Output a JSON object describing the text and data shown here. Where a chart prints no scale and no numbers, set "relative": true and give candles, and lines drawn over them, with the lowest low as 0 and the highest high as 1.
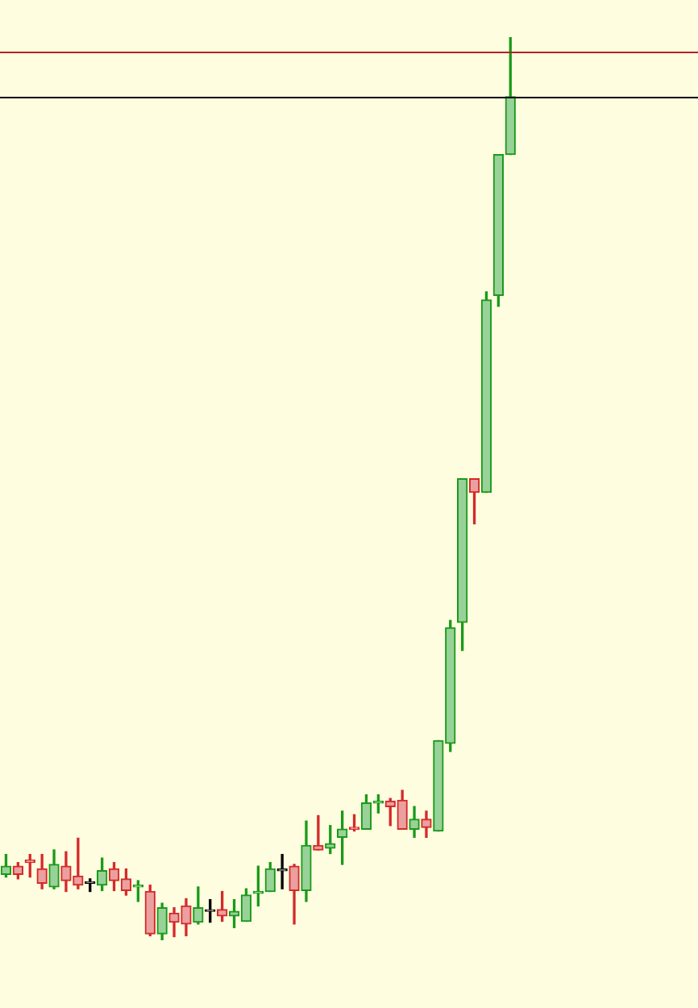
{
  "chart_data": {
    "type": "candlestick",
    "relative": true,
    "categories": [
      null,
      null,
      null,
      null,
      null,
      null,
      null,
      null,
      null,
      null,
      null,
      null,
      null,
      null,
      null,
      null,
      null,
      null,
      null,
      null,
      null,
      null,
      null,
      null,
      null,
      null,
      null,
      null,
      null,
      null,
      null,
      null,
      null,
      null,
      null,
      null,
      null,
      null,
      null,
      null,
      null,
      null,
      null
    ],
    "ohlc": [
      [
        0.073,
        0.095,
        0.07,
        0.082
      ],
      [
        0.082,
        0.086,
        0.068,
        0.073
      ],
      [
        0.089,
        0.095,
        0.07,
        0.086
      ],
      [
        0.079,
        0.095,
        0.057,
        0.063
      ],
      [
        0.059,
        0.1,
        0.057,
        0.084
      ],
      [
        0.082,
        0.098,
        0.054,
        0.066
      ],
      [
        0.071,
        0.113,
        0.057,
        0.061
      ],
      [
        0.063,
        0.068,
        0.054,
        0.063
      ],
      [
        0.061,
        0.091,
        0.055,
        0.077
      ],
      [
        0.079,
        0.086,
        0.055,
        0.066
      ],
      [
        0.068,
        0.079,
        0.05,
        0.055
      ],
      [
        0.059,
        0.066,
        0.043,
        0.061
      ],
      [
        0.054,
        0.061,
        0.005,
        0.007
      ],
      [
        0.007,
        0.041,
        0,
        0.036
      ],
      [
        0.03,
        0.036,
        0.004,
        0.02
      ],
      [
        0.038,
        0.046,
        0.005,
        0.018
      ],
      [
        0.02,
        0.059,
        0.018,
        0.036
      ],
      [
        0.032,
        0.045,
        0.02,
        0.032
      ],
      [
        0.034,
        0.054,
        0.021,
        0.027
      ],
      [
        0.027,
        0.045,
        0.014,
        0.032
      ],
      [
        0.021,
        0.057,
        0.021,
        0.05
      ],
      [
        0.052,
        0.082,
        0.038,
        0.054
      ],
      [
        0.054,
        0.086,
        0.054,
        0.079
      ],
      [
        0.077,
        0.095,
        0.057,
        0.077
      ],
      [
        0.082,
        0.084,
        0.018,
        0.055
      ],
      [
        0.055,
        0.132,
        0.043,
        0.105
      ],
      [
        0.105,
        0.138,
        0.1,
        0.1
      ],
      [
        0.102,
        0.127,
        0.096,
        0.107
      ],
      [
        0.114,
        0.143,
        0.084,
        0.123
      ],
      [
        0.125,
        0.139,
        0.121,
        0.123
      ],
      [
        0.123,
        0.161,
        0.123,
        0.152
      ],
      [
        0.152,
        0.161,
        0.141,
        0.154
      ],
      [
        0.154,
        0.157,
        0.127,
        0.148
      ],
      [
        0.155,
        0.166,
        0.123,
        0.123
      ],
      [
        0.123,
        0.148,
        0.114,
        0.134
      ],
      [
        0.134,
        0.143,
        0.114,
        0.125
      ],
      [
        0.121,
        0.221,
        0.121,
        0.221
      ],
      [
        0.218,
        0.354,
        0.209,
        0.346
      ],
      [
        0.352,
        0.511,
        0.321,
        0.511
      ],
      [
        0.511,
        0.511,
        0.461,
        0.496
      ],
      [
        0.496,
        0.718,
        0.496,
        0.709
      ],
      [
        0.714,
        0.87,
        0.702,
        0.87
      ],
      [
        0.87,
        1,
        0.87,
        0.934
      ]
    ],
    "colors": [
      "#1a9a1a",
      "#d42a2a",
      "#d42a2a",
      "#d42a2a",
      "#1a9a1a",
      "#d42a2a",
      "#d42a2a",
      "#000000",
      "#1a9a1a",
      "#d42a2a",
      "#d42a2a",
      "#1a9a1a",
      "#d42a2a",
      "#1a9a1a",
      "#d42a2a",
      "#d42a2a",
      "#1a9a1a",
      "#000000",
      "#d42a2a",
      "#1a9a1a",
      "#1a9a1a",
      "#1a9a1a",
      "#1a9a1a",
      "#000000",
      "#d42a2a",
      "#1a9a1a",
      "#d42a2a",
      "#1a9a1a",
      "#1a9a1a",
      "#d42a2a",
      "#1a9a1a",
      "#1a9a1a",
      "#d42a2a",
      "#d42a2a",
      "#1a9a1a",
      "#d42a2a",
      "#1a9a1a",
      "#1a9a1a",
      "#1a9a1a",
      "#d42a2a",
      "#1a9a1a",
      "#1a9a1a",
      "#1a9a1a"
    ],
    "ref_lines": [
      {
        "axis": "y",
        "value": 0.984,
        "color": "#b22222"
      },
      {
        "axis": "y",
        "value": 0.934,
        "color": "#000000"
      }
    ]
  }
}
